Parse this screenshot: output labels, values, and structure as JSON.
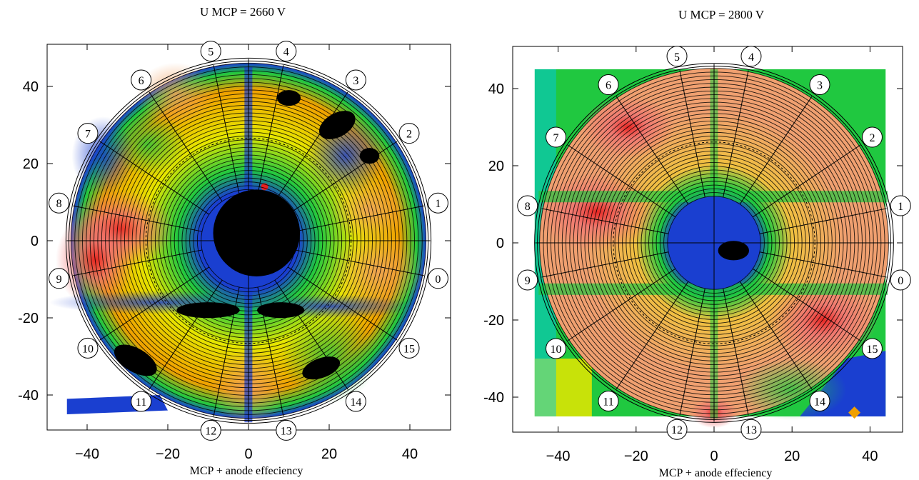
{
  "chart_data": [
    {
      "type": "heatmap",
      "title": "U MCP = 2660 V",
      "xlabel": "MCP + anode effeciency",
      "ylabel": "",
      "xlim": [
        -50,
        50
      ],
      "ylim": [
        -50,
        50
      ],
      "xticks": [
        -40,
        -20,
        0,
        20,
        40
      ],
      "yticks": [
        40,
        20,
        0,
        -20,
        -40
      ],
      "tick_labels": {
        "x": [
          "−40",
          "−20",
          "0",
          "20",
          "40"
        ],
        "y": [
          "40",
          "20",
          "0",
          "-20",
          "-40"
        ]
      },
      "grid": false,
      "colormap": [
        "#000000",
        "#1a3fd0",
        "#00c8e6",
        "#20c840",
        "#e6e600",
        "#f0a000",
        "#f07070",
        "#e82020"
      ],
      "detector": {
        "outer_radius": 45,
        "inner_radius": 12,
        "segments": 16
      },
      "segment_labels": [
        "0",
        "1",
        "2",
        "3",
        "4",
        "5",
        "6",
        "7",
        "8",
        "9",
        "10",
        "11",
        "12",
        "13",
        "14",
        "15"
      ],
      "hot_spots": [
        [
          -32,
          3
        ],
        [
          4,
          14
        ]
      ],
      "dead_regions": [
        "center",
        "sector-3",
        "sector-2",
        "sector-10",
        "sector-14"
      ]
    },
    {
      "type": "heatmap",
      "title": "U MCP = 2800 V",
      "xlabel": "MCP + anode effeciency",
      "ylabel": "",
      "xlim": [
        -50,
        50
      ],
      "ylim": [
        -50,
        50
      ],
      "xticks": [
        -40,
        -20,
        0,
        20,
        40
      ],
      "yticks": [
        40,
        20,
        0,
        -20,
        -40
      ],
      "tick_labels": {
        "x": [
          "−40",
          "−20",
          "0",
          "20",
          "40"
        ],
        "y": [
          "40",
          "20",
          "0",
          "-20",
          "-40"
        ]
      },
      "grid": false,
      "colormap": [
        "#1a3fd0",
        "#00c8e6",
        "#20c840",
        "#e6e600",
        "#f0a000",
        "#f07070",
        "#e82020"
      ],
      "detector": {
        "outer_radius": 45,
        "inner_radius": 12,
        "segments": 16
      },
      "segment_labels": [
        "0",
        "1",
        "2",
        "3",
        "4",
        "5",
        "6",
        "7",
        "8",
        "9",
        "10",
        "11",
        "12",
        "13",
        "14",
        "15"
      ],
      "hot_spots": [
        [
          0,
          -44
        ],
        [
          36,
          -44
        ]
      ],
      "dead_regions": [
        "center-hole"
      ]
    }
  ]
}
